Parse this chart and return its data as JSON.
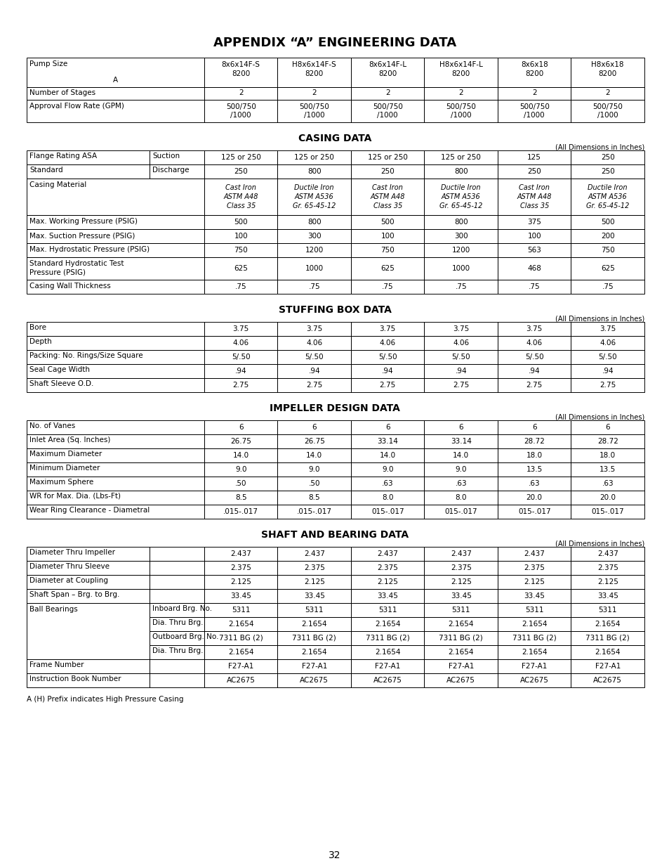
{
  "title": "APPENDIX “A” ENGINEERING DATA",
  "background_color": "#ffffff",
  "pump_headers": [
    "8x6x14F-S\n8200",
    "H8x6x14F-S\n8200",
    "8x6x14F-L\n8200",
    "H8x6x14F-L\n8200",
    "8x6x18\n8200",
    "H8x6x18\n8200"
  ],
  "casing_title": "CASING DATA",
  "stuffing_title": "STUFFING BOX DATA",
  "impeller_title": "IMPELLER DESIGN DATA",
  "shaft_title": "SHAFT AND BEARING DATA",
  "dim_note": "(All Dimensions in Inches)",
  "footer_note": "A (H) Prefix indicates High Pressure Casing",
  "page_number": "32"
}
